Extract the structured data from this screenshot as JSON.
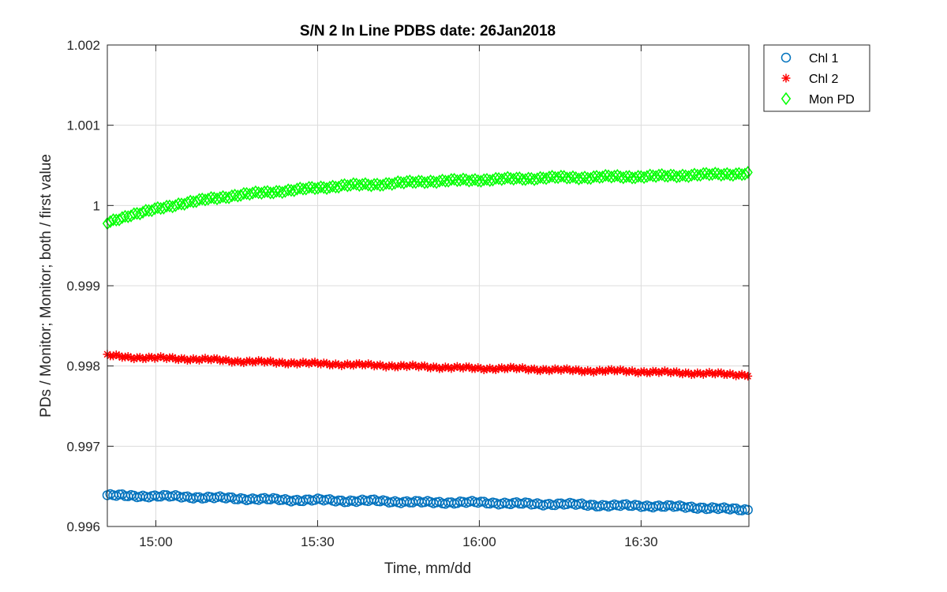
{
  "chart_data": {
    "type": "scatter",
    "title": "S/N 2 In Line PDBS date: 26Jan2018",
    "xlabel": "Time, mm/dd",
    "ylabel": "PDs / Monitor; Monitor; both / first value",
    "xlim_minutes": [
      891,
      1010
    ],
    "ylim": [
      0.996,
      1.002
    ],
    "x_ticks": [
      {
        "value": 900,
        "label": "15:00"
      },
      {
        "value": 930,
        "label": "15:30"
      },
      {
        "value": 960,
        "label": "16:00"
      },
      {
        "value": 990,
        "label": "16:30"
      }
    ],
    "y_ticks": [
      {
        "value": 0.996,
        "label": "0.996"
      },
      {
        "value": 0.997,
        "label": "0.997"
      },
      {
        "value": 0.998,
        "label": "0.998"
      },
      {
        "value": 0.999,
        "label": "0.999"
      },
      {
        "value": 1.0,
        "label": "1"
      },
      {
        "value": 1.001,
        "label": "1.001"
      },
      {
        "value": 1.002,
        "label": "1.002"
      }
    ],
    "grid": true,
    "legend_position": "outside-top-right",
    "series": [
      {
        "name": "Chl 1",
        "marker": "circle",
        "color": "#0072BD",
        "x": [
          891,
          895,
          900,
          905,
          910,
          915,
          920,
          925,
          930,
          935,
          940,
          945,
          950,
          955,
          960,
          965,
          970,
          975,
          980,
          985,
          990,
          995,
          1000,
          1005,
          1010
        ],
        "y": [
          0.99639,
          0.99638,
          0.99638,
          0.99637,
          0.99636,
          0.99635,
          0.99634,
          0.99633,
          0.99633,
          0.99632,
          0.99632,
          0.99631,
          0.9963,
          0.9963,
          0.9963,
          0.99629,
          0.99628,
          0.99628,
          0.99627,
          0.99626,
          0.99626,
          0.99625,
          0.99624,
          0.99622,
          0.99621
        ]
      },
      {
        "name": "Chl 2",
        "marker": "asterisk",
        "color": "#FF0000",
        "x": [
          891,
          895,
          900,
          905,
          910,
          915,
          920,
          925,
          930,
          935,
          940,
          945,
          950,
          955,
          960,
          965,
          970,
          975,
          980,
          985,
          990,
          995,
          1000,
          1005,
          1010
        ],
        "y": [
          0.99813,
          0.99811,
          0.9981,
          0.99809,
          0.99808,
          0.99806,
          0.99805,
          0.99804,
          0.99803,
          0.99802,
          0.99801,
          0.998,
          0.99799,
          0.99798,
          0.99797,
          0.99797,
          0.99796,
          0.99795,
          0.99794,
          0.99794,
          0.99793,
          0.99792,
          0.99791,
          0.9979,
          0.99789
        ]
      },
      {
        "name": "Mon PD",
        "marker": "diamond",
        "color": "#00FF00",
        "x": [
          891,
          895,
          900,
          905,
          910,
          915,
          920,
          925,
          930,
          935,
          940,
          945,
          950,
          955,
          960,
          965,
          970,
          975,
          980,
          985,
          990,
          995,
          1000,
          1005,
          1010
        ],
        "y": [
          0.99978,
          0.99988,
          0.99995,
          1.00003,
          1.00008,
          1.00013,
          1.00016,
          1.00019,
          1.00022,
          1.00025,
          1.00026,
          1.00028,
          1.0003,
          1.00031,
          1.00032,
          1.00033,
          1.00034,
          1.00035,
          1.00035,
          1.00036,
          1.00036,
          1.00037,
          1.00038,
          1.00039,
          1.0004
        ]
      }
    ]
  }
}
